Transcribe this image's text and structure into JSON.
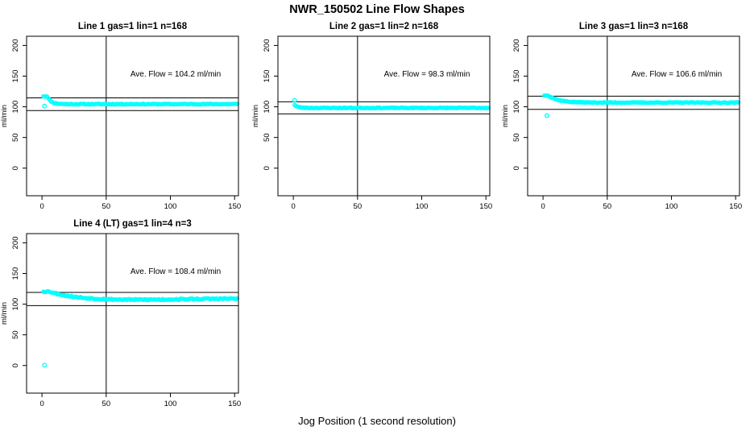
{
  "colors": {
    "points": "#00FFFF",
    "axis": "#000000",
    "background": "#FFFFFF"
  },
  "chart_data": {
    "type": "scatter",
    "title": "NWR_150502  Line Flow Shapes",
    "xlabel": "Jog Position (1 second resolution)",
    "ylabel": "ml/min",
    "xlim": [
      0,
      150
    ],
    "ylim": [
      0,
      200
    ],
    "xticks": [
      0,
      50,
      100,
      150
    ],
    "yticks": [
      0,
      50,
      100,
      150,
      200
    ],
    "marker": "open-circle",
    "marker_color": "#00FFFF",
    "grid": false,
    "legend": "none",
    "subplots": [
      {
        "title": "Line 1 gas=1 lin=1 n=168",
        "ave_flow_text": "Ave. Flow =  104.2  ml/min",
        "ave_flow": 104.2,
        "n": 168,
        "ref_lines": [
          114.6,
          93.8
        ],
        "vline_x": 50,
        "series": {
          "x_start": 1,
          "x_end": 152,
          "plateau_end": 4,
          "plateau_value": 117,
          "tau": 3,
          "steady": 104.4,
          "noise": 0.9,
          "wave_amp": 0,
          "seed": 11
        },
        "outliers": [
          [
            2,
            101
          ]
        ]
      },
      {
        "title": "Line 2 gas=1 lin=2 n=168",
        "ave_flow_text": "Ave. Flow =  98.3  ml/min",
        "ave_flow": 98.3,
        "n": 168,
        "ref_lines": [
          108.1,
          88.5
        ],
        "vline_x": 50,
        "series": {
          "x_start": 1,
          "x_end": 152,
          "plateau_end": 1,
          "plateau_value": 103,
          "tau": 2.5,
          "steady": 98.2,
          "noise": 0.8,
          "wave_amp": 0,
          "seed": 23
        },
        "outliers": [
          [
            1,
            110.5
          ]
        ]
      },
      {
        "title": "Line 3 gas=1 lin=3 n=168",
        "ave_flow_text": "Ave. Flow =  106.6  ml/min",
        "ave_flow": 106.6,
        "n": 168,
        "ref_lines": [
          117.3,
          95.9
        ],
        "vline_x": 50,
        "series": {
          "x_start": 1,
          "x_end": 152,
          "plateau_end": 4,
          "plateau_value": 118.5,
          "tau": 8,
          "steady": 106.9,
          "noise": 0.9,
          "wave_amp": 0,
          "seed": 37
        },
        "outliers": [
          [
            3,
            85.5
          ]
        ]
      },
      {
        "title": "Line 4 (LT) gas=1 lin=4 n=3",
        "ave_flow_text": "Ave. Flow =  108.4  ml/min",
        "ave_flow": 108.4,
        "n": 3,
        "ref_lines": [
          119.2,
          97.6
        ],
        "vline_x": 50,
        "series": {
          "x_start": 1,
          "x_end": 152,
          "plateau_end": 6,
          "plateau_value": 120,
          "tau": 18,
          "steady": 108.0,
          "noise": 1.6,
          "wave_amp": 1.0,
          "seed": 53
        },
        "outliers": [
          [
            2,
            0.5
          ]
        ]
      }
    ]
  }
}
